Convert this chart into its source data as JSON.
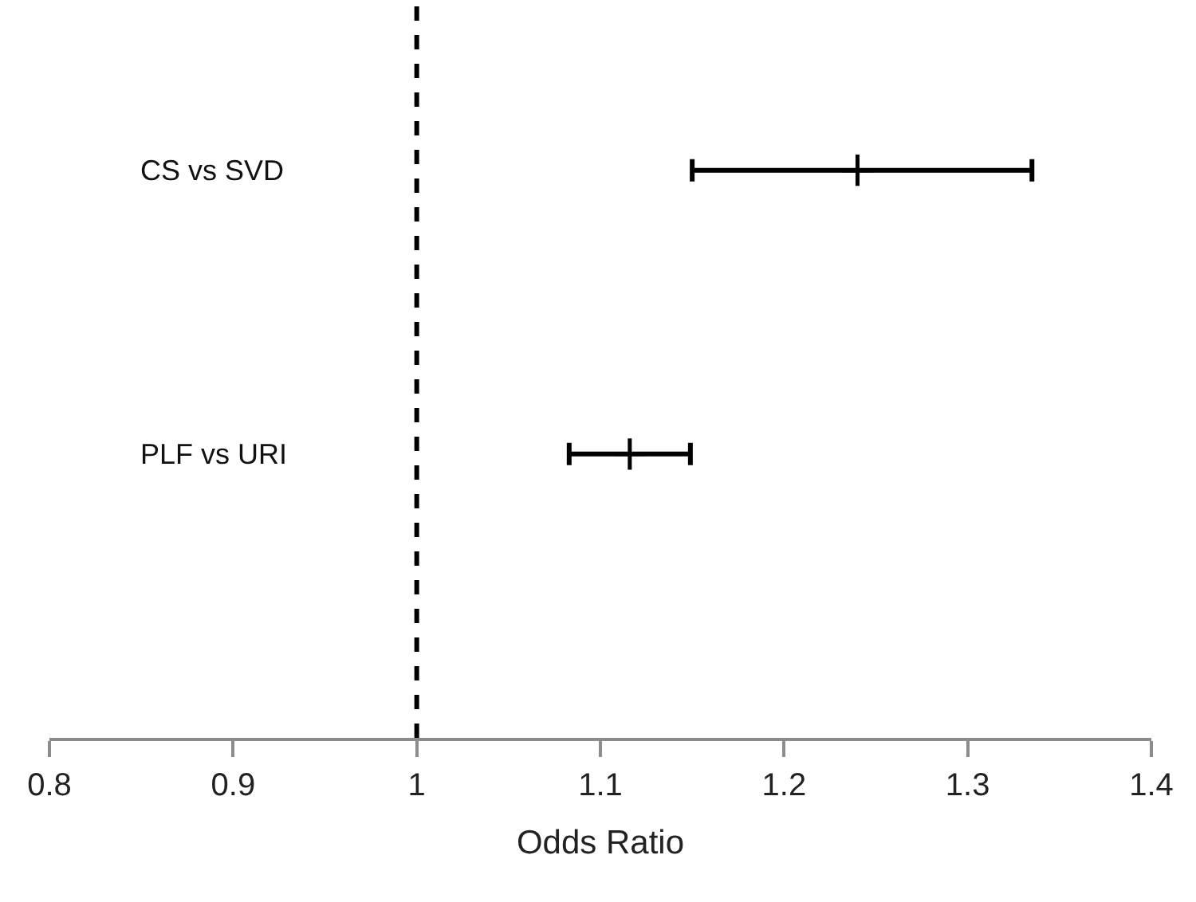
{
  "chart_data": {
    "type": "scatter",
    "orientation": "horizontal",
    "xlabel": "Odds Ratio",
    "categories": [
      "CS vs SVD",
      "PLF vs URI"
    ],
    "series": [
      {
        "color": "#000000",
        "values": [
          1.24,
          1.116
        ],
        "errors": [
          [
            1.15,
            1.335
          ],
          [
            1.083,
            1.149
          ]
        ]
      }
    ],
    "marker": "cross",
    "xlim": [
      0.8,
      1.4
    ],
    "xticks": [
      0.8,
      0.9,
      1,
      1.1,
      1.2,
      1.3,
      1.4
    ],
    "tick_labels": "x",
    "ref_lines": [
      {
        "axis": "x",
        "value": 1,
        "color": "#000000",
        "line_style": "dashed"
      }
    ]
  }
}
